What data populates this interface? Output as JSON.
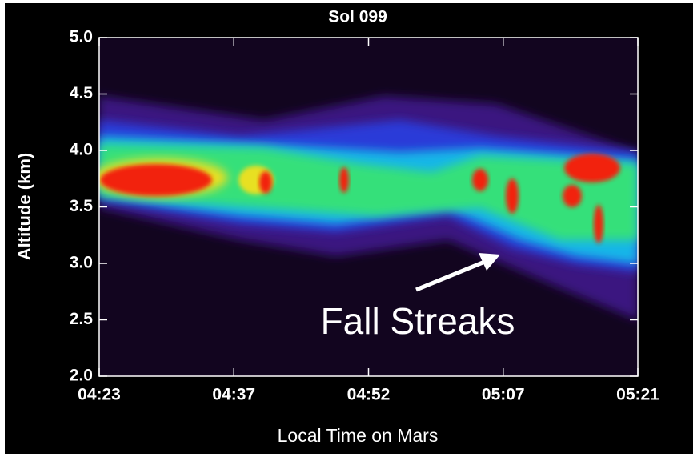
{
  "chart_data": {
    "type": "heatmap",
    "title": "Sol 099",
    "xlabel": "Local Time on Mars",
    "ylabel": "Altitude (km)",
    "xticks": [
      "04:23",
      "04:37",
      "04:52",
      "05:07",
      "05:21"
    ],
    "ylim": [
      2.0,
      5.0
    ],
    "yticks": [
      {
        "value": 2,
        "label": "2.0"
      },
      {
        "value": 2.5,
        "label": "2.5"
      },
      {
        "value": 3,
        "label": "3.0"
      },
      {
        "value": 3.5,
        "label": "3.5"
      },
      {
        "value": 4,
        "label": "4.0"
      },
      {
        "value": 4.5,
        "label": "4.5"
      },
      {
        "value": 5,
        "label": "5.0"
      }
    ],
    "annotation": "Fall Streaks"
  }
}
